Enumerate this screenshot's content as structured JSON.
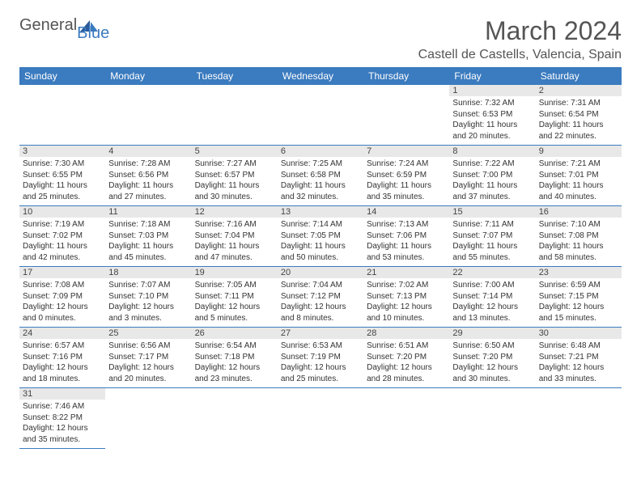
{
  "logo": {
    "general": "General",
    "blue": "Blue"
  },
  "title": "March 2024",
  "location": "Castell de Castells, Valencia, Spain",
  "colors": {
    "header_bg": "#3b7bbf",
    "header_text": "#ffffff",
    "daynum_bg": "#e8e8e8",
    "text": "#333333",
    "body_bg": "#ffffff"
  },
  "weekdays": [
    "Sunday",
    "Monday",
    "Tuesday",
    "Wednesday",
    "Thursday",
    "Friday",
    "Saturday"
  ],
  "cells": [
    {
      "n": "",
      "l1": "",
      "l2": "",
      "l3": "",
      "l4": ""
    },
    {
      "n": "",
      "l1": "",
      "l2": "",
      "l3": "",
      "l4": ""
    },
    {
      "n": "",
      "l1": "",
      "l2": "",
      "l3": "",
      "l4": ""
    },
    {
      "n": "",
      "l1": "",
      "l2": "",
      "l3": "",
      "l4": ""
    },
    {
      "n": "",
      "l1": "",
      "l2": "",
      "l3": "",
      "l4": ""
    },
    {
      "n": "1",
      "l1": "Sunrise: 7:32 AM",
      "l2": "Sunset: 6:53 PM",
      "l3": "Daylight: 11 hours",
      "l4": "and 20 minutes."
    },
    {
      "n": "2",
      "l1": "Sunrise: 7:31 AM",
      "l2": "Sunset: 6:54 PM",
      "l3": "Daylight: 11 hours",
      "l4": "and 22 minutes."
    },
    {
      "n": "3",
      "l1": "Sunrise: 7:30 AM",
      "l2": "Sunset: 6:55 PM",
      "l3": "Daylight: 11 hours",
      "l4": "and 25 minutes."
    },
    {
      "n": "4",
      "l1": "Sunrise: 7:28 AM",
      "l2": "Sunset: 6:56 PM",
      "l3": "Daylight: 11 hours",
      "l4": "and 27 minutes."
    },
    {
      "n": "5",
      "l1": "Sunrise: 7:27 AM",
      "l2": "Sunset: 6:57 PM",
      "l3": "Daylight: 11 hours",
      "l4": "and 30 minutes."
    },
    {
      "n": "6",
      "l1": "Sunrise: 7:25 AM",
      "l2": "Sunset: 6:58 PM",
      "l3": "Daylight: 11 hours",
      "l4": "and 32 minutes."
    },
    {
      "n": "7",
      "l1": "Sunrise: 7:24 AM",
      "l2": "Sunset: 6:59 PM",
      "l3": "Daylight: 11 hours",
      "l4": "and 35 minutes."
    },
    {
      "n": "8",
      "l1": "Sunrise: 7:22 AM",
      "l2": "Sunset: 7:00 PM",
      "l3": "Daylight: 11 hours",
      "l4": "and 37 minutes."
    },
    {
      "n": "9",
      "l1": "Sunrise: 7:21 AM",
      "l2": "Sunset: 7:01 PM",
      "l3": "Daylight: 11 hours",
      "l4": "and 40 minutes."
    },
    {
      "n": "10",
      "l1": "Sunrise: 7:19 AM",
      "l2": "Sunset: 7:02 PM",
      "l3": "Daylight: 11 hours",
      "l4": "and 42 minutes."
    },
    {
      "n": "11",
      "l1": "Sunrise: 7:18 AM",
      "l2": "Sunset: 7:03 PM",
      "l3": "Daylight: 11 hours",
      "l4": "and 45 minutes."
    },
    {
      "n": "12",
      "l1": "Sunrise: 7:16 AM",
      "l2": "Sunset: 7:04 PM",
      "l3": "Daylight: 11 hours",
      "l4": "and 47 minutes."
    },
    {
      "n": "13",
      "l1": "Sunrise: 7:14 AM",
      "l2": "Sunset: 7:05 PM",
      "l3": "Daylight: 11 hours",
      "l4": "and 50 minutes."
    },
    {
      "n": "14",
      "l1": "Sunrise: 7:13 AM",
      "l2": "Sunset: 7:06 PM",
      "l3": "Daylight: 11 hours",
      "l4": "and 53 minutes."
    },
    {
      "n": "15",
      "l1": "Sunrise: 7:11 AM",
      "l2": "Sunset: 7:07 PM",
      "l3": "Daylight: 11 hours",
      "l4": "and 55 minutes."
    },
    {
      "n": "16",
      "l1": "Sunrise: 7:10 AM",
      "l2": "Sunset: 7:08 PM",
      "l3": "Daylight: 11 hours",
      "l4": "and 58 minutes."
    },
    {
      "n": "17",
      "l1": "Sunrise: 7:08 AM",
      "l2": "Sunset: 7:09 PM",
      "l3": "Daylight: 12 hours",
      "l4": "and 0 minutes."
    },
    {
      "n": "18",
      "l1": "Sunrise: 7:07 AM",
      "l2": "Sunset: 7:10 PM",
      "l3": "Daylight: 12 hours",
      "l4": "and 3 minutes."
    },
    {
      "n": "19",
      "l1": "Sunrise: 7:05 AM",
      "l2": "Sunset: 7:11 PM",
      "l3": "Daylight: 12 hours",
      "l4": "and 5 minutes."
    },
    {
      "n": "20",
      "l1": "Sunrise: 7:04 AM",
      "l2": "Sunset: 7:12 PM",
      "l3": "Daylight: 12 hours",
      "l4": "and 8 minutes."
    },
    {
      "n": "21",
      "l1": "Sunrise: 7:02 AM",
      "l2": "Sunset: 7:13 PM",
      "l3": "Daylight: 12 hours",
      "l4": "and 10 minutes."
    },
    {
      "n": "22",
      "l1": "Sunrise: 7:00 AM",
      "l2": "Sunset: 7:14 PM",
      "l3": "Daylight: 12 hours",
      "l4": "and 13 minutes."
    },
    {
      "n": "23",
      "l1": "Sunrise: 6:59 AM",
      "l2": "Sunset: 7:15 PM",
      "l3": "Daylight: 12 hours",
      "l4": "and 15 minutes."
    },
    {
      "n": "24",
      "l1": "Sunrise: 6:57 AM",
      "l2": "Sunset: 7:16 PM",
      "l3": "Daylight: 12 hours",
      "l4": "and 18 minutes."
    },
    {
      "n": "25",
      "l1": "Sunrise: 6:56 AM",
      "l2": "Sunset: 7:17 PM",
      "l3": "Daylight: 12 hours",
      "l4": "and 20 minutes."
    },
    {
      "n": "26",
      "l1": "Sunrise: 6:54 AM",
      "l2": "Sunset: 7:18 PM",
      "l3": "Daylight: 12 hours",
      "l4": "and 23 minutes."
    },
    {
      "n": "27",
      "l1": "Sunrise: 6:53 AM",
      "l2": "Sunset: 7:19 PM",
      "l3": "Daylight: 12 hours",
      "l4": "and 25 minutes."
    },
    {
      "n": "28",
      "l1": "Sunrise: 6:51 AM",
      "l2": "Sunset: 7:20 PM",
      "l3": "Daylight: 12 hours",
      "l4": "and 28 minutes."
    },
    {
      "n": "29",
      "l1": "Sunrise: 6:50 AM",
      "l2": "Sunset: 7:20 PM",
      "l3": "Daylight: 12 hours",
      "l4": "and 30 minutes."
    },
    {
      "n": "30",
      "l1": "Sunrise: 6:48 AM",
      "l2": "Sunset: 7:21 PM",
      "l3": "Daylight: 12 hours",
      "l4": "and 33 minutes."
    },
    {
      "n": "31",
      "l1": "Sunrise: 7:46 AM",
      "l2": "Sunset: 8:22 PM",
      "l3": "Daylight: 12 hours",
      "l4": "and 35 minutes."
    },
    {
      "n": "",
      "l1": "",
      "l2": "",
      "l3": "",
      "l4": ""
    },
    {
      "n": "",
      "l1": "",
      "l2": "",
      "l3": "",
      "l4": ""
    },
    {
      "n": "",
      "l1": "",
      "l2": "",
      "l3": "",
      "l4": ""
    },
    {
      "n": "",
      "l1": "",
      "l2": "",
      "l3": "",
      "l4": ""
    },
    {
      "n": "",
      "l1": "",
      "l2": "",
      "l3": "",
      "l4": ""
    },
    {
      "n": "",
      "l1": "",
      "l2": "",
      "l3": "",
      "l4": ""
    }
  ]
}
